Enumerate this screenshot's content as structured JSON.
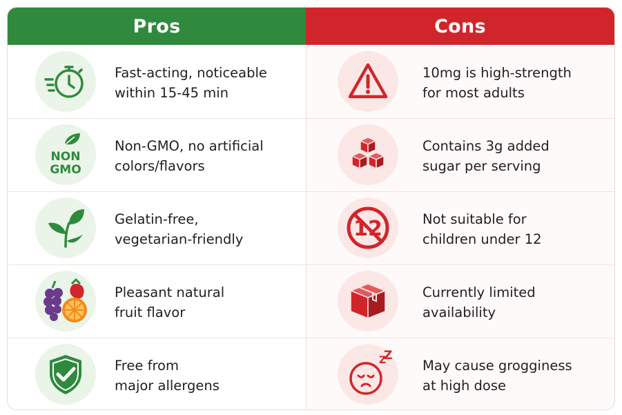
{
  "header": {
    "pros_title": "Pros",
    "cons_title": "Cons"
  },
  "pros": [
    {
      "icon": "stopwatch-icon",
      "line1": "Fast-acting, noticeable",
      "line2": "within 15-45 min"
    },
    {
      "icon": "non-gmo-leaf-icon",
      "icon_text_1": "NON",
      "icon_text_2": "GMO",
      "line1": "Non-GMO, no artificial",
      "line2": "colors/flavors"
    },
    {
      "icon": "plant-sprout-icon",
      "line1": "Gelatin-free,",
      "line2": "vegetarian-friendly"
    },
    {
      "icon": "fruit-icon",
      "line1": "Pleasant natural",
      "line2": "fruit flavor"
    },
    {
      "icon": "shield-check-icon",
      "line1": "Free from",
      "line2": "major allergens"
    }
  ],
  "cons": [
    {
      "icon": "warning-triangle-icon",
      "line1": "10mg is high-strength",
      "line2": "for most adults"
    },
    {
      "icon": "sugar-cubes-icon",
      "line1": "Contains 3g added",
      "line2": "sugar per serving"
    },
    {
      "icon": "no-under-12-icon",
      "icon_text": "12",
      "line1": "Not suitable for",
      "line2": "children under 12"
    },
    {
      "icon": "box-icon",
      "line1": "Currently limited",
      "line2": "availability"
    },
    {
      "icon": "sleepy-face-icon",
      "icon_text": "Z",
      "line1": "May cause grogginess",
      "line2": "at high dose"
    }
  ],
  "colors": {
    "pros_accent": "#2f8a3d",
    "cons_accent": "#d0262b",
    "pros_icon_bg": "#eaf4e8",
    "cons_icon_bg": "#fbe7e6"
  }
}
